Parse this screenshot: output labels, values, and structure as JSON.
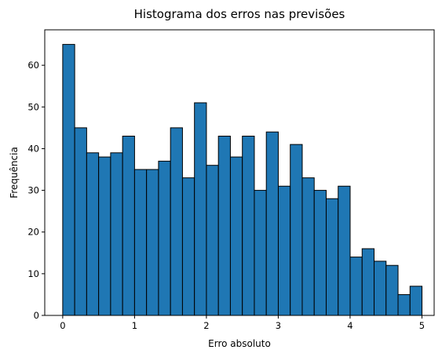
{
  "chart_data": {
    "type": "bar",
    "title": "Histograma dos erros nas previsões",
    "xlabel": "Erro absoluto",
    "ylabel": "Frequência",
    "xlim": [
      -0.25,
      5.17
    ],
    "ylim": [
      0,
      68.5
    ],
    "bin_width": 0.1667,
    "bin_start": 0.0,
    "values": [
      65,
      45,
      39,
      38,
      39,
      43,
      35,
      35,
      37,
      45,
      33,
      51,
      36,
      43,
      38,
      43,
      30,
      44,
      31,
      41,
      33,
      30,
      28,
      31,
      14,
      16,
      13,
      12,
      5,
      7
    ],
    "xticks": [
      0,
      1,
      2,
      3,
      4,
      5
    ],
    "xtick_labels": [
      "0",
      "1",
      "2",
      "3",
      "4",
      "5"
    ],
    "yticks": [
      0,
      10,
      20,
      30,
      40,
      50,
      60
    ],
    "ytick_labels": [
      "0",
      "10",
      "20",
      "30",
      "40",
      "50",
      "60"
    ],
    "bar_color": "#1f77b4",
    "edge_color": "#000000",
    "grid": false
  }
}
